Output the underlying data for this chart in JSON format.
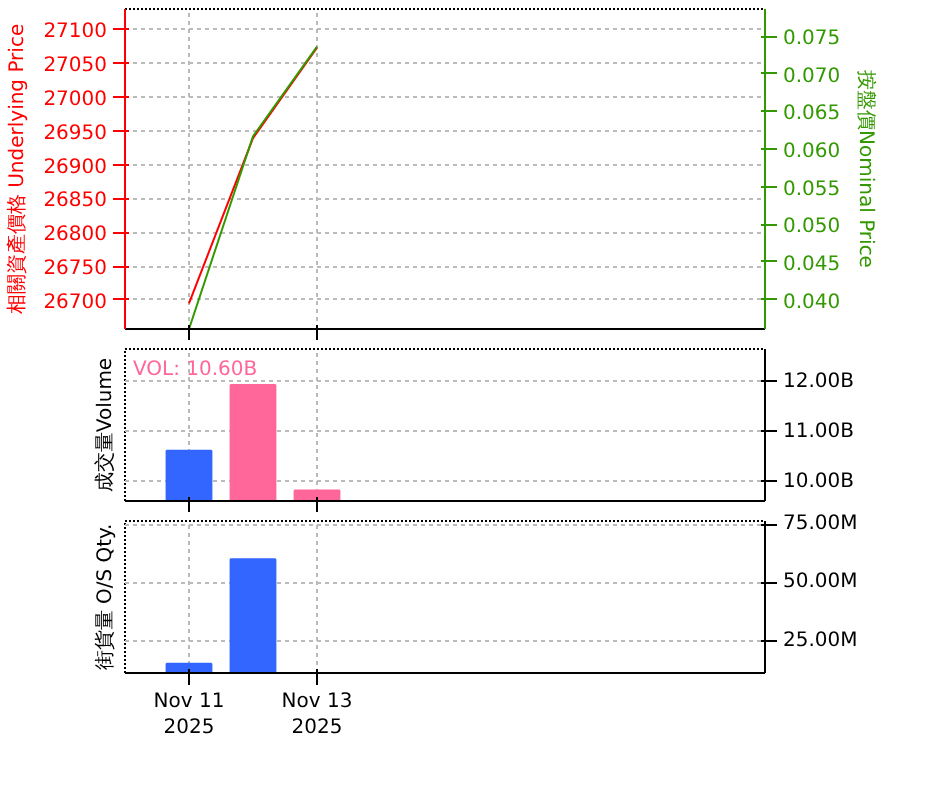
{
  "chart_data": [
    {
      "type": "line",
      "ylabel": "相關資產價格 Underlying Price",
      "y2label": "按盤價Nominal Price",
      "x": [
        "2025-11-11",
        "2025-11-12",
        "2025-11-13"
      ],
      "xlim": [
        "2025-11-10",
        "2025-11-20"
      ],
      "xticks": [
        "2025-11-11",
        "2025-11-13"
      ],
      "ylim": [
        26657,
        27130
      ],
      "yticks": [
        26700,
        26750,
        26800,
        26850,
        26900,
        26950,
        27000,
        27050,
        27100
      ],
      "y2lim": [
        0.0361,
        0.0786
      ],
      "y2ticks": [
        {
          "value": 0.04,
          "label": "0.040"
        },
        0.045,
        {
          "value": 0.05,
          "label": "0.050"
        },
        0.055,
        {
          "value": 0.06,
          "label": "0.060"
        },
        0.065,
        {
          "value": 0.07,
          "label": "0.070"
        },
        0.075
      ],
      "grid": true,
      "tick_labels": "y",
      "series": [
        {
          "color": "#ff0000",
          "values": [
            26695,
            26939,
            27073
          ]
        },
        {
          "color": "#339900",
          "axis": "y2",
          "values": [
            0.0361,
            0.0617,
            0.0736
          ]
        }
      ]
    },
    {
      "type": "bar",
      "ylabel": "成交量Volume",
      "x": [
        "2025-11-11",
        "2025-11-12",
        "2025-11-13"
      ],
      "xlim": [
        "2025-11-10",
        "2025-11-20"
      ],
      "xticks": [
        "2025-11-11",
        "2025-11-13"
      ],
      "ylim": [
        9.62,
        12.65
      ],
      "yticks": [
        {
          "value": 10,
          "label": "10.00B"
        },
        {
          "value": 11,
          "label": "11.00B"
        },
        {
          "value": 12,
          "label": "12.00B"
        }
      ],
      "grid": true,
      "tick_labels": "y",
      "annotations": [
        "VOL: 10.60B"
      ],
      "values": [
        10.62,
        11.93,
        9.83
      ],
      "colors": [
        "#3366ff",
        "#ff6699",
        "#ff6699"
      ]
    },
    {
      "type": "bar",
      "ylabel": "街貨量 O/S Qty.",
      "x": [
        "2025-11-11",
        "2025-11-12"
      ],
      "xlim": [
        "2025-11-10",
        "2025-11-20"
      ],
      "xticks": [
        {
          "value": "2025-11-11",
          "label": "Nov 11\n2025"
        },
        {
          "value": "2025-11-13",
          "label": "Nov 13\n2025"
        }
      ],
      "ylim": [
        11,
        76.5
      ],
      "yticks": [
        {
          "value": 25,
          "label": "25.00M"
        },
        {
          "value": 50,
          "label": "50.00M"
        },
        {
          "value": 75,
          "label": "75.00M"
        }
      ],
      "grid": true,
      "values": [
        15,
        60
      ],
      "colors": [
        "#3366ff",
        "#3366ff"
      ]
    }
  ]
}
